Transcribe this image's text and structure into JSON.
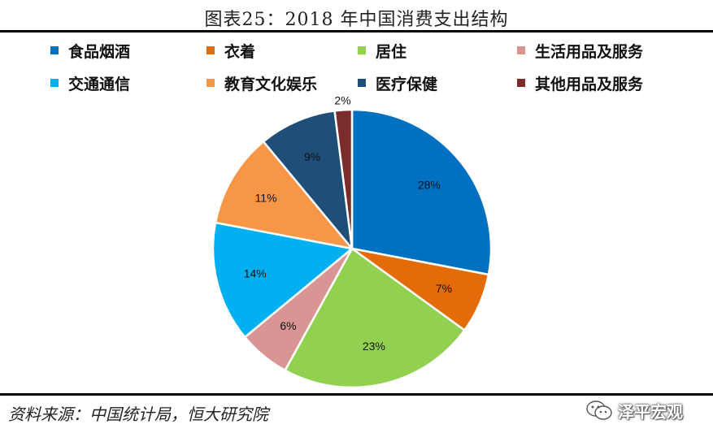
{
  "title": "图表25：2018 年中国消费支出结构",
  "chart_data": {
    "type": "pie",
    "title": "图表25：2018 年中国消费支出结构",
    "legend_position": "top",
    "slices": [
      {
        "name": "食品烟酒",
        "value": 28,
        "label": "28%",
        "color": "#0070C0"
      },
      {
        "name": "衣着",
        "value": 7,
        "label": "7%",
        "color": "#E36C09"
      },
      {
        "name": "居住",
        "value": 23,
        "label": "23%",
        "color": "#92D050"
      },
      {
        "name": "生活用品及服务",
        "value": 6,
        "label": "6%",
        "color": "#D99594"
      },
      {
        "name": "交通通信",
        "value": 14,
        "label": "14%",
        "color": "#00B0F0"
      },
      {
        "name": "教育文化娱乐",
        "value": 11,
        "label": "11%",
        "color": "#F79646"
      },
      {
        "name": "医疗保健",
        "value": 9,
        "label": "9%",
        "color": "#1F4E79"
      },
      {
        "name": "其他用品及服务",
        "value": 2,
        "label": "2%",
        "color": "#7B2C2C"
      }
    ],
    "legend_order": [
      0,
      1,
      2,
      3,
      4,
      5,
      6,
      7
    ]
  },
  "source": "资料来源：中国统计局，恒大研究院",
  "brand": {
    "name": "泽平宏观",
    "icon": "wechat-icon"
  }
}
